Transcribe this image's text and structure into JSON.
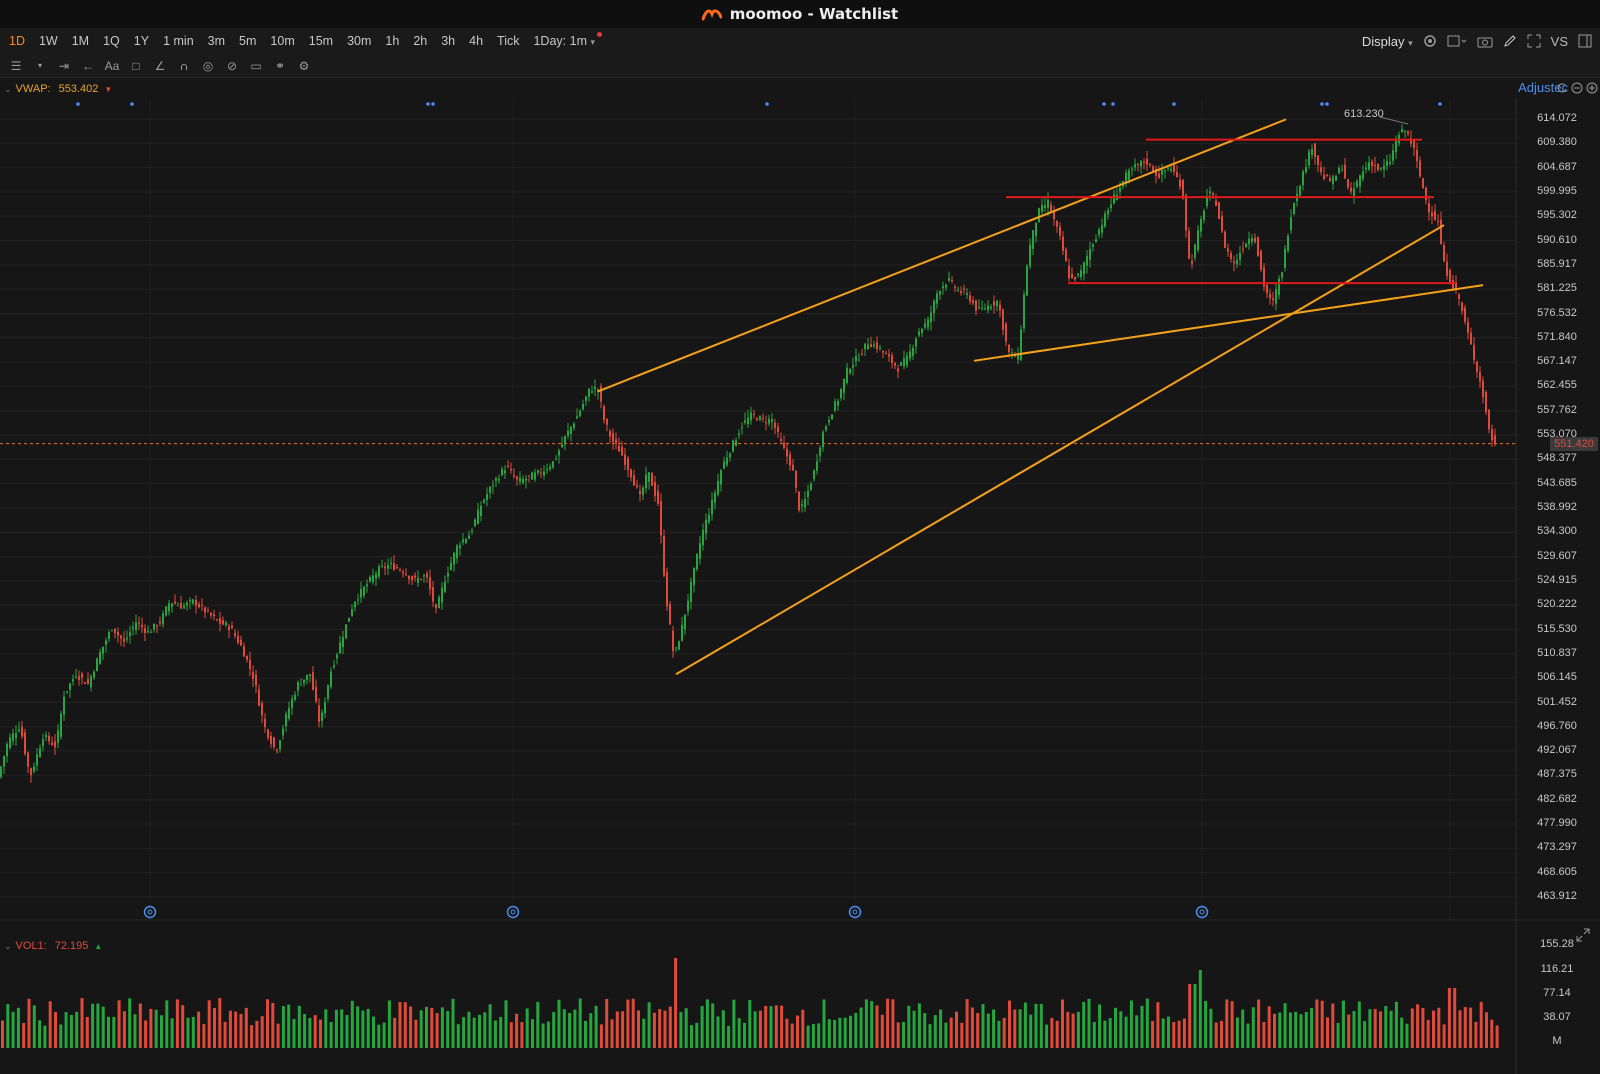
{
  "window": {
    "title": "moomoo - Watchlist"
  },
  "timeframes": [
    {
      "label": "1D",
      "active": true
    },
    {
      "label": "1W"
    },
    {
      "label": "1M"
    },
    {
      "label": "1Q"
    },
    {
      "label": "1Y"
    },
    {
      "label": "1 min"
    },
    {
      "label": "3m"
    },
    {
      "label": "5m"
    },
    {
      "label": "10m"
    },
    {
      "label": "15m"
    },
    {
      "label": "30m"
    },
    {
      "label": "1h"
    },
    {
      "label": "2h"
    },
    {
      "label": "3h"
    },
    {
      "label": "4h"
    },
    {
      "label": "Tick"
    }
  ],
  "interval_select": {
    "label": "1Day: 1m"
  },
  "display_label": "Display",
  "vs_label": "VS",
  "indicator": {
    "name": "VWAP:",
    "value": "553.402"
  },
  "adjusted_label": "Adjustec",
  "price_axis": {
    "labels": [
      "614.072",
      "609.380",
      "604.687",
      "599.995",
      "595.302",
      "590.610",
      "585.917",
      "581.225",
      "576.532",
      "571.840",
      "567.147",
      "562.455",
      "557.762",
      "553.070",
      "548.377",
      "543.685",
      "538.992",
      "534.300",
      "529.607",
      "524.915",
      "520.222",
      "515.530",
      "510.837",
      "506.145",
      "501.452",
      "496.760",
      "492.067",
      "487.375",
      "482.682",
      "477.990",
      "473.297",
      "468.605",
      "463.912"
    ],
    "current_price": "551.420",
    "high_annotation": "613.230"
  },
  "volume": {
    "name": "VOL1:",
    "value": "72.195",
    "axis_labels": [
      "155.28",
      "116.21",
      "77.14",
      "38.07",
      "M"
    ]
  },
  "colors": {
    "up": "#26a63f",
    "down": "#e04a3a",
    "trend": "#f5a11a",
    "level": "#e01a1a",
    "accent": "#ff8a1e"
  },
  "chart_data": {
    "type": "candlestick",
    "ylim": [
      463.912,
      614.072
    ],
    "path": [
      [
        0,
        487
      ],
      [
        10,
        494
      ],
      [
        22,
        497
      ],
      [
        32,
        487
      ],
      [
        45,
        495
      ],
      [
        58,
        493
      ],
      [
        66,
        503
      ],
      [
        78,
        507
      ],
      [
        90,
        505
      ],
      [
        102,
        511
      ],
      [
        114,
        516
      ],
      [
        126,
        513
      ],
      [
        138,
        517
      ],
      [
        150,
        515
      ],
      [
        162,
        517
      ],
      [
        172,
        521
      ],
      [
        184,
        520
      ],
      [
        196,
        521
      ],
      [
        208,
        519
      ],
      [
        220,
        517
      ],
      [
        232,
        516
      ],
      [
        244,
        512
      ],
      [
        256,
        506
      ],
      [
        266,
        497
      ],
      [
        278,
        492
      ],
      [
        290,
        500
      ],
      [
        300,
        505
      ],
      [
        312,
        507
      ],
      [
        322,
        497
      ],
      [
        332,
        507
      ],
      [
        344,
        514
      ],
      [
        356,
        521
      ],
      [
        368,
        524
      ],
      [
        380,
        527
      ],
      [
        392,
        528
      ],
      [
        404,
        527
      ],
      [
        416,
        525
      ],
      [
        428,
        526
      ],
      [
        438,
        519
      ],
      [
        448,
        526
      ],
      [
        460,
        532
      ],
      [
        472,
        534
      ],
      [
        484,
        540
      ],
      [
        496,
        544
      ],
      [
        508,
        547
      ],
      [
        520,
        544
      ],
      [
        532,
        545
      ],
      [
        544,
        546
      ],
      [
        556,
        548
      ],
      [
        568,
        553
      ],
      [
        580,
        557
      ],
      [
        592,
        562
      ],
      [
        600,
        562
      ],
      [
        606,
        556
      ],
      [
        614,
        552
      ],
      [
        622,
        550
      ],
      [
        632,
        546
      ],
      [
        642,
        541
      ],
      [
        650,
        546
      ],
      [
        660,
        540
      ],
      [
        668,
        522
      ],
      [
        676,
        510
      ],
      [
        684,
        516
      ],
      [
        694,
        525
      ],
      [
        704,
        534
      ],
      [
        714,
        540
      ],
      [
        724,
        547
      ],
      [
        734,
        551
      ],
      [
        744,
        555
      ],
      [
        754,
        557
      ],
      [
        764,
        556
      ],
      [
        774,
        556
      ],
      [
        784,
        551
      ],
      [
        794,
        547
      ],
      [
        802,
        538
      ],
      [
        808,
        541
      ],
      [
        816,
        546
      ],
      [
        824,
        553
      ],
      [
        832,
        557
      ],
      [
        840,
        560
      ],
      [
        850,
        566
      ],
      [
        860,
        568
      ],
      [
        870,
        571
      ],
      [
        880,
        570
      ],
      [
        890,
        568
      ],
      [
        900,
        566
      ],
      [
        910,
        568
      ],
      [
        920,
        573
      ],
      [
        930,
        575
      ],
      [
        940,
        581
      ],
      [
        950,
        583
      ],
      [
        960,
        581
      ],
      [
        970,
        580
      ],
      [
        980,
        577
      ],
      [
        990,
        578
      ],
      [
        1000,
        579
      ],
      [
        1010,
        569
      ],
      [
        1020,
        568
      ],
      [
        1030,
        588
      ],
      [
        1040,
        596
      ],
      [
        1050,
        598
      ],
      [
        1062,
        591
      ],
      [
        1072,
        583
      ],
      [
        1082,
        584
      ],
      [
        1092,
        589
      ],
      [
        1104,
        594
      ],
      [
        1116,
        599
      ],
      [
        1128,
        603
      ],
      [
        1138,
        605
      ],
      [
        1148,
        606
      ],
      [
        1160,
        603
      ],
      [
        1172,
        605
      ],
      [
        1184,
        601
      ],
      [
        1192,
        585
      ],
      [
        1200,
        592
      ],
      [
        1210,
        600
      ],
      [
        1218,
        598
      ],
      [
        1226,
        590
      ],
      [
        1236,
        586
      ],
      [
        1246,
        590
      ],
      [
        1256,
        592
      ],
      [
        1266,
        582
      ],
      [
        1274,
        578
      ],
      [
        1284,
        585
      ],
      [
        1294,
        597
      ],
      [
        1304,
        603
      ],
      [
        1314,
        609
      ],
      [
        1324,
        603
      ],
      [
        1334,
        602
      ],
      [
        1344,
        605
      ],
      [
        1352,
        599
      ],
      [
        1362,
        603
      ],
      [
        1372,
        606
      ],
      [
        1382,
        604
      ],
      [
        1392,
        606
      ],
      [
        1400,
        611
      ],
      [
        1408,
        612
      ],
      [
        1416,
        608
      ],
      [
        1422,
        603
      ],
      [
        1430,
        597
      ],
      [
        1440,
        594
      ],
      [
        1446,
        586
      ],
      [
        1452,
        583
      ],
      [
        1460,
        580
      ],
      [
        1468,
        574
      ],
      [
        1476,
        568
      ],
      [
        1484,
        562
      ],
      [
        1490,
        555
      ],
      [
        1496,
        551
      ]
    ],
    "trendlines": [
      {
        "x": [
          598,
          1286
        ],
        "y": [
          561.5,
          614.0
        ]
      },
      {
        "x": [
          676,
          1444
        ],
        "y": [
          506.9,
          593.6
        ]
      },
      {
        "x": [
          974,
          1483
        ],
        "y": [
          567.4,
          582.0
        ]
      }
    ],
    "levels": [
      {
        "x": [
          1146,
          1422
        ],
        "y": [
          610.1,
          610.1
        ]
      },
      {
        "x": [
          1006,
          1434
        ],
        "y": [
          599.0,
          599.0
        ]
      },
      {
        "x": [
          1068,
          1456
        ],
        "y": [
          582.4,
          582.4
        ]
      }
    ]
  }
}
